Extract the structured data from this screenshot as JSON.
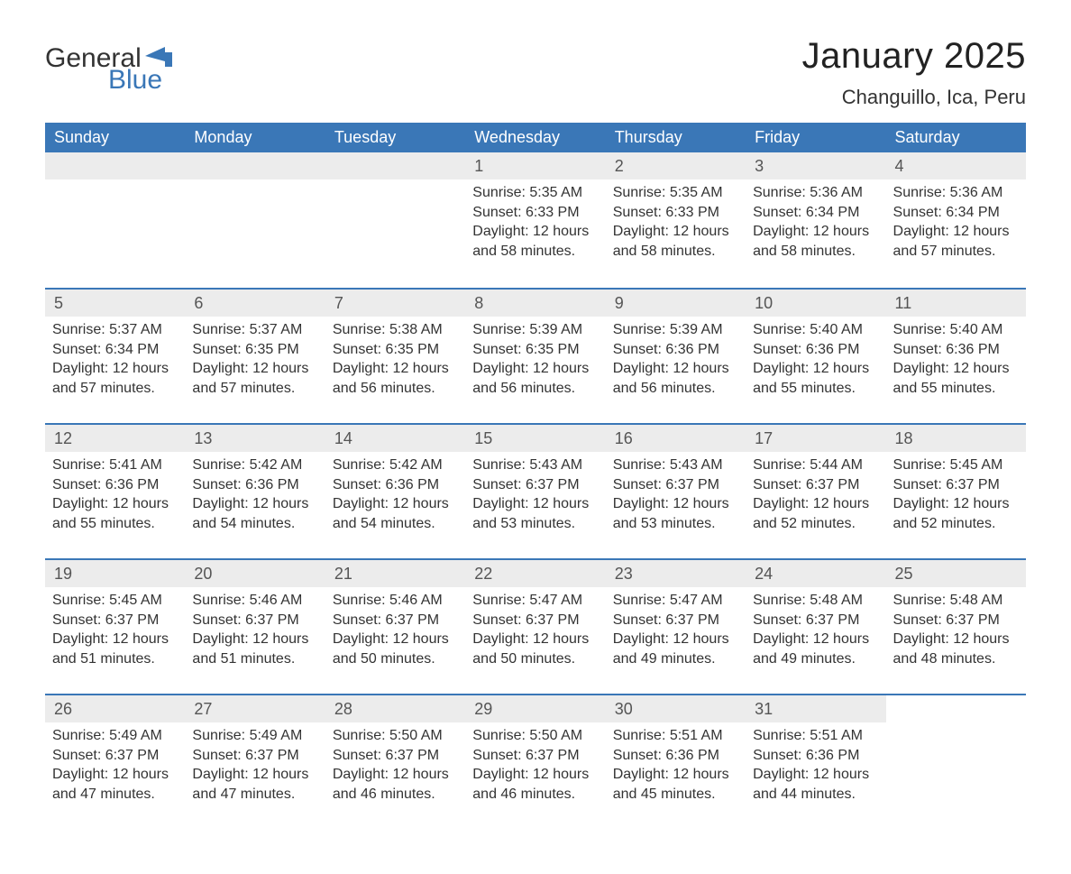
{
  "logo": {
    "general": "General",
    "blue": "Blue",
    "flag_color": "#3a77b7"
  },
  "title": "January 2025",
  "location": "Changuillo, Ica, Peru",
  "colors": {
    "header_bg": "#3a77b7",
    "header_text": "#ffffff",
    "daynum_bg": "#ececec",
    "body_text": "#333333",
    "week_border": "#3a77b7"
  },
  "day_headers": [
    "Sunday",
    "Monday",
    "Tuesday",
    "Wednesday",
    "Thursday",
    "Friday",
    "Saturday"
  ],
  "weeks": [
    [
      {
        "day": "",
        "sunrise": "",
        "sunset": "",
        "daylight1": "",
        "daylight2": ""
      },
      {
        "day": "",
        "sunrise": "",
        "sunset": "",
        "daylight1": "",
        "daylight2": ""
      },
      {
        "day": "",
        "sunrise": "",
        "sunset": "",
        "daylight1": "",
        "daylight2": ""
      },
      {
        "day": "1",
        "sunrise": "Sunrise: 5:35 AM",
        "sunset": "Sunset: 6:33 PM",
        "daylight1": "Daylight: 12 hours",
        "daylight2": "and 58 minutes."
      },
      {
        "day": "2",
        "sunrise": "Sunrise: 5:35 AM",
        "sunset": "Sunset: 6:33 PM",
        "daylight1": "Daylight: 12 hours",
        "daylight2": "and 58 minutes."
      },
      {
        "day": "3",
        "sunrise": "Sunrise: 5:36 AM",
        "sunset": "Sunset: 6:34 PM",
        "daylight1": "Daylight: 12 hours",
        "daylight2": "and 58 minutes."
      },
      {
        "day": "4",
        "sunrise": "Sunrise: 5:36 AM",
        "sunset": "Sunset: 6:34 PM",
        "daylight1": "Daylight: 12 hours",
        "daylight2": "and 57 minutes."
      }
    ],
    [
      {
        "day": "5",
        "sunrise": "Sunrise: 5:37 AM",
        "sunset": "Sunset: 6:34 PM",
        "daylight1": "Daylight: 12 hours",
        "daylight2": "and 57 minutes."
      },
      {
        "day": "6",
        "sunrise": "Sunrise: 5:37 AM",
        "sunset": "Sunset: 6:35 PM",
        "daylight1": "Daylight: 12 hours",
        "daylight2": "and 57 minutes."
      },
      {
        "day": "7",
        "sunrise": "Sunrise: 5:38 AM",
        "sunset": "Sunset: 6:35 PM",
        "daylight1": "Daylight: 12 hours",
        "daylight2": "and 56 minutes."
      },
      {
        "day": "8",
        "sunrise": "Sunrise: 5:39 AM",
        "sunset": "Sunset: 6:35 PM",
        "daylight1": "Daylight: 12 hours",
        "daylight2": "and 56 minutes."
      },
      {
        "day": "9",
        "sunrise": "Sunrise: 5:39 AM",
        "sunset": "Sunset: 6:36 PM",
        "daylight1": "Daylight: 12 hours",
        "daylight2": "and 56 minutes."
      },
      {
        "day": "10",
        "sunrise": "Sunrise: 5:40 AM",
        "sunset": "Sunset: 6:36 PM",
        "daylight1": "Daylight: 12 hours",
        "daylight2": "and 55 minutes."
      },
      {
        "day": "11",
        "sunrise": "Sunrise: 5:40 AM",
        "sunset": "Sunset: 6:36 PM",
        "daylight1": "Daylight: 12 hours",
        "daylight2": "and 55 minutes."
      }
    ],
    [
      {
        "day": "12",
        "sunrise": "Sunrise: 5:41 AM",
        "sunset": "Sunset: 6:36 PM",
        "daylight1": "Daylight: 12 hours",
        "daylight2": "and 55 minutes."
      },
      {
        "day": "13",
        "sunrise": "Sunrise: 5:42 AM",
        "sunset": "Sunset: 6:36 PM",
        "daylight1": "Daylight: 12 hours",
        "daylight2": "and 54 minutes."
      },
      {
        "day": "14",
        "sunrise": "Sunrise: 5:42 AM",
        "sunset": "Sunset: 6:36 PM",
        "daylight1": "Daylight: 12 hours",
        "daylight2": "and 54 minutes."
      },
      {
        "day": "15",
        "sunrise": "Sunrise: 5:43 AM",
        "sunset": "Sunset: 6:37 PM",
        "daylight1": "Daylight: 12 hours",
        "daylight2": "and 53 minutes."
      },
      {
        "day": "16",
        "sunrise": "Sunrise: 5:43 AM",
        "sunset": "Sunset: 6:37 PM",
        "daylight1": "Daylight: 12 hours",
        "daylight2": "and 53 minutes."
      },
      {
        "day": "17",
        "sunrise": "Sunrise: 5:44 AM",
        "sunset": "Sunset: 6:37 PM",
        "daylight1": "Daylight: 12 hours",
        "daylight2": "and 52 minutes."
      },
      {
        "day": "18",
        "sunrise": "Sunrise: 5:45 AM",
        "sunset": "Sunset: 6:37 PM",
        "daylight1": "Daylight: 12 hours",
        "daylight2": "and 52 minutes."
      }
    ],
    [
      {
        "day": "19",
        "sunrise": "Sunrise: 5:45 AM",
        "sunset": "Sunset: 6:37 PM",
        "daylight1": "Daylight: 12 hours",
        "daylight2": "and 51 minutes."
      },
      {
        "day": "20",
        "sunrise": "Sunrise: 5:46 AM",
        "sunset": "Sunset: 6:37 PM",
        "daylight1": "Daylight: 12 hours",
        "daylight2": "and 51 minutes."
      },
      {
        "day": "21",
        "sunrise": "Sunrise: 5:46 AM",
        "sunset": "Sunset: 6:37 PM",
        "daylight1": "Daylight: 12 hours",
        "daylight2": "and 50 minutes."
      },
      {
        "day": "22",
        "sunrise": "Sunrise: 5:47 AM",
        "sunset": "Sunset: 6:37 PM",
        "daylight1": "Daylight: 12 hours",
        "daylight2": "and 50 minutes."
      },
      {
        "day": "23",
        "sunrise": "Sunrise: 5:47 AM",
        "sunset": "Sunset: 6:37 PM",
        "daylight1": "Daylight: 12 hours",
        "daylight2": "and 49 minutes."
      },
      {
        "day": "24",
        "sunrise": "Sunrise: 5:48 AM",
        "sunset": "Sunset: 6:37 PM",
        "daylight1": "Daylight: 12 hours",
        "daylight2": "and 49 minutes."
      },
      {
        "day": "25",
        "sunrise": "Sunrise: 5:48 AM",
        "sunset": "Sunset: 6:37 PM",
        "daylight1": "Daylight: 12 hours",
        "daylight2": "and 48 minutes."
      }
    ],
    [
      {
        "day": "26",
        "sunrise": "Sunrise: 5:49 AM",
        "sunset": "Sunset: 6:37 PM",
        "daylight1": "Daylight: 12 hours",
        "daylight2": "and 47 minutes."
      },
      {
        "day": "27",
        "sunrise": "Sunrise: 5:49 AM",
        "sunset": "Sunset: 6:37 PM",
        "daylight1": "Daylight: 12 hours",
        "daylight2": "and 47 minutes."
      },
      {
        "day": "28",
        "sunrise": "Sunrise: 5:50 AM",
        "sunset": "Sunset: 6:37 PM",
        "daylight1": "Daylight: 12 hours",
        "daylight2": "and 46 minutes."
      },
      {
        "day": "29",
        "sunrise": "Sunrise: 5:50 AM",
        "sunset": "Sunset: 6:37 PM",
        "daylight1": "Daylight: 12 hours",
        "daylight2": "and 46 minutes."
      },
      {
        "day": "30",
        "sunrise": "Sunrise: 5:51 AM",
        "sunset": "Sunset: 6:36 PM",
        "daylight1": "Daylight: 12 hours",
        "daylight2": "and 45 minutes."
      },
      {
        "day": "31",
        "sunrise": "Sunrise: 5:51 AM",
        "sunset": "Sunset: 6:36 PM",
        "daylight1": "Daylight: 12 hours",
        "daylight2": "and 44 minutes."
      },
      {
        "day": "",
        "sunrise": "",
        "sunset": "",
        "daylight1": "",
        "daylight2": ""
      }
    ]
  ]
}
